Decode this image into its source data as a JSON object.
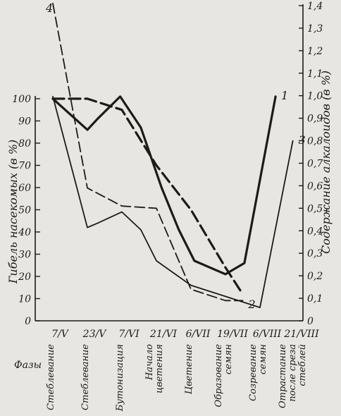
{
  "chart_data": {
    "type": "line",
    "y_left": {
      "label": "Гибель насекомых (в %)",
      "ticks": [
        "0",
        "10",
        "20",
        "30",
        "40",
        "50",
        "60",
        "70",
        "80",
        "90",
        "100"
      ],
      "range": [
        0,
        100
      ]
    },
    "y_right": {
      "label": "Содержание алкалоидов (в %)",
      "ticks": [
        "0",
        "0,1",
        "0,2",
        "0,3",
        "0,4",
        "0,5",
        "0,6",
        "0,7",
        "0,8",
        "0,9",
        "1,0",
        "1,1",
        "1,2",
        "1,3",
        "1,4"
      ],
      "range": [
        0,
        1.4
      ]
    },
    "x_dates": [
      "7/V",
      "23/V",
      "7/VI",
      "21/VI",
      "6/VII",
      "19/VII",
      "6/VIII",
      "21/VIII"
    ],
    "phases_label": "Фазы",
    "phases": [
      [
        "Стеблевание"
      ],
      [
        "Стеблевание"
      ],
      [
        "Бутонизация"
      ],
      [
        "Начало",
        "цветения"
      ],
      [
        "Цветение"
      ],
      [
        "Образование",
        "семян"
      ],
      [
        "Созревание",
        "семян"
      ],
      [
        "Отрастание",
        "после среза",
        "стеблей"
      ]
    ],
    "series": [
      {
        "name": "1",
        "style": "thick-solid",
        "axis": "left",
        "x": [
          0,
          1,
          1.3,
          1.95,
          2.55,
          3.15,
          3.65,
          4.1,
          5.0,
          5.55,
          6.45
        ],
        "y": [
          100,
          86,
          91,
          101,
          87,
          60,
          41,
          27,
          21,
          26,
          101
        ]
      },
      {
        "name": "2",
        "style": "thick-dashed",
        "axis": "left",
        "x": [
          0,
          1,
          2,
          3,
          4,
          5,
          5.5
        ],
        "y": [
          100,
          100,
          95,
          70,
          50,
          24,
          12
        ]
      },
      {
        "name": "3",
        "style": "thin-solid",
        "axis": "left",
        "x": [
          0,
          1,
          1.3,
          2,
          2.55,
          3,
          4,
          5,
          6,
          6.95
        ],
        "y": [
          101,
          42,
          44,
          49,
          41,
          27,
          16,
          11,
          6,
          81
        ]
      },
      {
        "name": "4",
        "style": "thin-dashed",
        "axis": "right",
        "x": [
          0,
          1,
          2,
          3,
          4,
          5,
          5.5
        ],
        "y": [
          1.41,
          0.59,
          0.51,
          0.5,
          0.14,
          0.09,
          0.09
        ]
      }
    ]
  }
}
